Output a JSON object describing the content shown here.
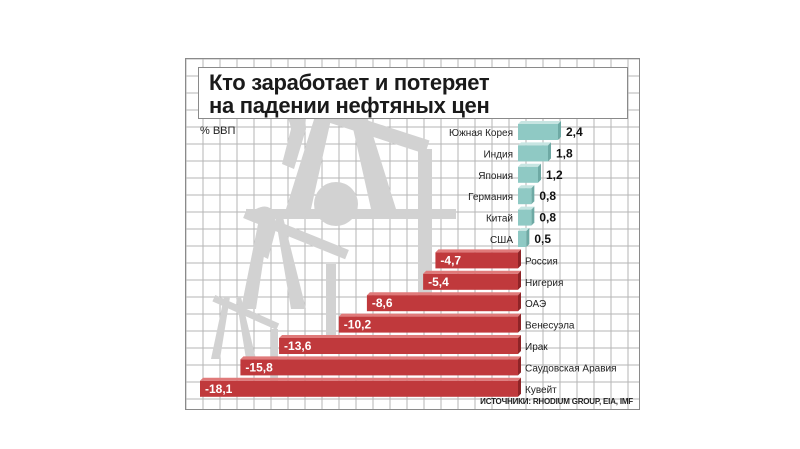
{
  "chart_data": {
    "type": "bar",
    "title": "Кто заработает и потеряет на падении нефтяных цен",
    "title_lines": [
      "Кто заработает и потеряет",
      "на падении нефтяных цен"
    ],
    "ylabel": "% ВВП",
    "source": "ИСТОЧНИКИ: RHODIUM GROUP, EIA, IMF",
    "categories": [
      "Южная Корея",
      "Индия",
      "Япония",
      "Германия",
      "Китай",
      "США",
      "Россия",
      "Нигерия",
      "ОАЭ",
      "Венесуэла",
      "Ирак",
      "Саудовская Аравия",
      "Кувейт"
    ],
    "values": [
      2.4,
      1.8,
      1.2,
      0.8,
      0.8,
      0.5,
      -4.7,
      -5.4,
      -8.6,
      -10.2,
      -13.6,
      -15.8,
      -18.1
    ],
    "value_labels": [
      "2,4",
      "1,8",
      "1,2",
      "0,8",
      "0,8",
      "0,5",
      "-4,7",
      "-5,4",
      "-8,6",
      "-10,2",
      "-13,6",
      "-15,8",
      "-18,1"
    ],
    "xlim": [
      -18.1,
      2.4
    ],
    "grid": true
  },
  "colors": {
    "positive": "#8fc9c4",
    "negative": "#c0393c",
    "grid": "#b5b5b5",
    "silhouette": "#d4d4d4"
  }
}
